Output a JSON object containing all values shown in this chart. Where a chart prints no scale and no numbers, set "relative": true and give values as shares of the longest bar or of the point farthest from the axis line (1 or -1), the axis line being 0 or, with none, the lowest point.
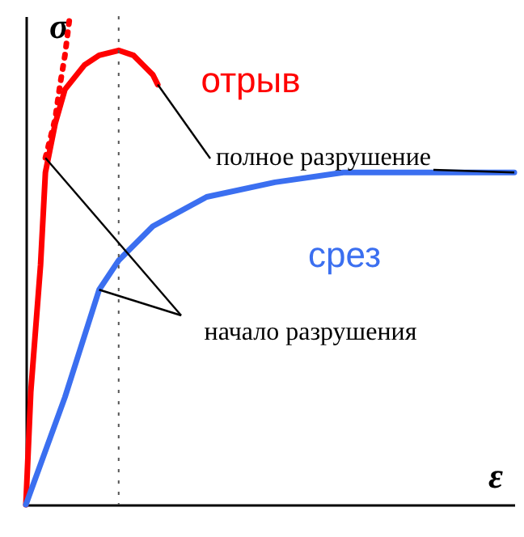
{
  "chart_data": {
    "type": "line",
    "relative": true,
    "xlabel": "ε",
    "ylabel": "σ",
    "marker": "none",
    "categories": [
      null,
      null,
      null,
      null,
      null,
      null,
      null,
      null,
      null,
      null,
      null,
      null,
      null,
      null,
      null,
      null,
      null,
      null,
      null,
      null,
      null,
      null,
      null,
      null,
      null,
      null,
      null,
      null,
      null,
      null,
      null,
      null,
      null,
      null,
      null,
      null,
      null,
      null,
      null,
      null,
      null,
      null,
      null,
      null,
      null,
      null,
      null,
      null,
      null,
      null,
      null,
      null,
      null,
      null,
      null,
      null,
      null,
      null,
      null,
      null,
      null,
      null,
      null,
      null,
      null,
      null,
      null,
      null,
      null,
      null,
      null,
      null,
      null,
      null,
      null,
      null,
      null,
      null,
      null,
      null,
      null,
      null,
      null,
      null,
      null,
      null,
      null,
      null,
      null,
      null,
      null,
      null,
      null,
      null,
      null,
      null,
      null,
      null,
      null,
      null,
      null
    ],
    "series": [
      {
        "name": "отрыв",
        "color": "#ff0000",
        "line_style": "solid",
        "values": [
          0,
          0.23,
          null,
          0.49,
          0.68,
          null,
          0.78,
          null,
          0.85,
          null,
          null,
          null,
          0.9,
          null,
          null,
          0.92,
          null,
          null,
          null,
          0.93,
          null,
          null,
          0.92,
          null,
          0.9,
          null,
          0.88,
          0.86,
          null,
          null,
          null,
          null,
          null,
          null,
          null,
          null,
          null,
          null,
          null,
          null,
          null,
          null,
          null,
          null,
          null,
          null,
          null,
          null,
          null,
          null,
          null,
          null,
          null,
          null,
          null,
          null,
          null,
          null,
          null,
          null,
          null,
          null,
          null,
          null,
          null,
          null,
          null,
          null,
          null,
          null,
          null,
          null,
          null,
          null,
          null,
          null,
          null,
          null,
          null,
          null,
          null,
          null,
          null,
          null,
          null,
          null,
          null,
          null,
          null,
          null,
          null,
          null,
          null,
          null,
          null,
          null,
          null,
          null,
          null,
          null,
          null
        ]
      },
      {
        "color": "#ff0000",
        "line_style": "dotted",
        "values": [
          null,
          null,
          null,
          null,
          0.71,
          null,
          0.79,
          0.86,
          0.92,
          1.0,
          null,
          null,
          null,
          null,
          null,
          null,
          null,
          null,
          null,
          null,
          null,
          null,
          null,
          null,
          null,
          null,
          null,
          null,
          null,
          null,
          null,
          null,
          null,
          null,
          null,
          null,
          null,
          null,
          null,
          null,
          null,
          null,
          null,
          null,
          null,
          null,
          null,
          null,
          null,
          null,
          null,
          null,
          null,
          null,
          null,
          null,
          null,
          null,
          null,
          null,
          null,
          null,
          null,
          null,
          null,
          null,
          null,
          null,
          null,
          null,
          null,
          null,
          null,
          null,
          null,
          null,
          null,
          null,
          null,
          null,
          null,
          null,
          null,
          null,
          null,
          null,
          null,
          null,
          null,
          null,
          null,
          null,
          null,
          null,
          null,
          null,
          null,
          null,
          null,
          null,
          null
        ]
      },
      {
        "name": "срез",
        "color": "#3b6ff0",
        "line_style": "solid",
        "values": [
          0,
          null,
          null,
          null,
          null,
          null,
          null,
          null,
          0.22,
          null,
          null,
          null,
          null,
          null,
          null,
          0.44,
          null,
          null,
          null,
          0.5,
          null,
          null,
          null,
          null,
          null,
          null,
          0.57,
          null,
          null,
          null,
          null,
          null,
          null,
          null,
          null,
          null,
          null,
          0.63,
          null,
          null,
          null,
          null,
          null,
          null,
          null,
          null,
          null,
          null,
          null,
          null,
          null,
          0.66,
          null,
          null,
          null,
          null,
          null,
          null,
          null,
          null,
          null,
          null,
          null,
          null,
          null,
          0.68,
          null,
          null,
          null,
          null,
          null,
          null,
          null,
          null,
          null,
          null,
          null,
          null,
          null,
          null,
          null,
          null,
          0.68,
          null,
          null,
          null,
          null,
          null,
          null,
          null,
          null,
          null,
          null,
          null,
          null,
          null,
          null,
          null,
          null,
          null,
          0.68
        ]
      }
    ],
    "annotations": [
      "полное разрушение",
      "начало разрушения"
    ]
  }
}
